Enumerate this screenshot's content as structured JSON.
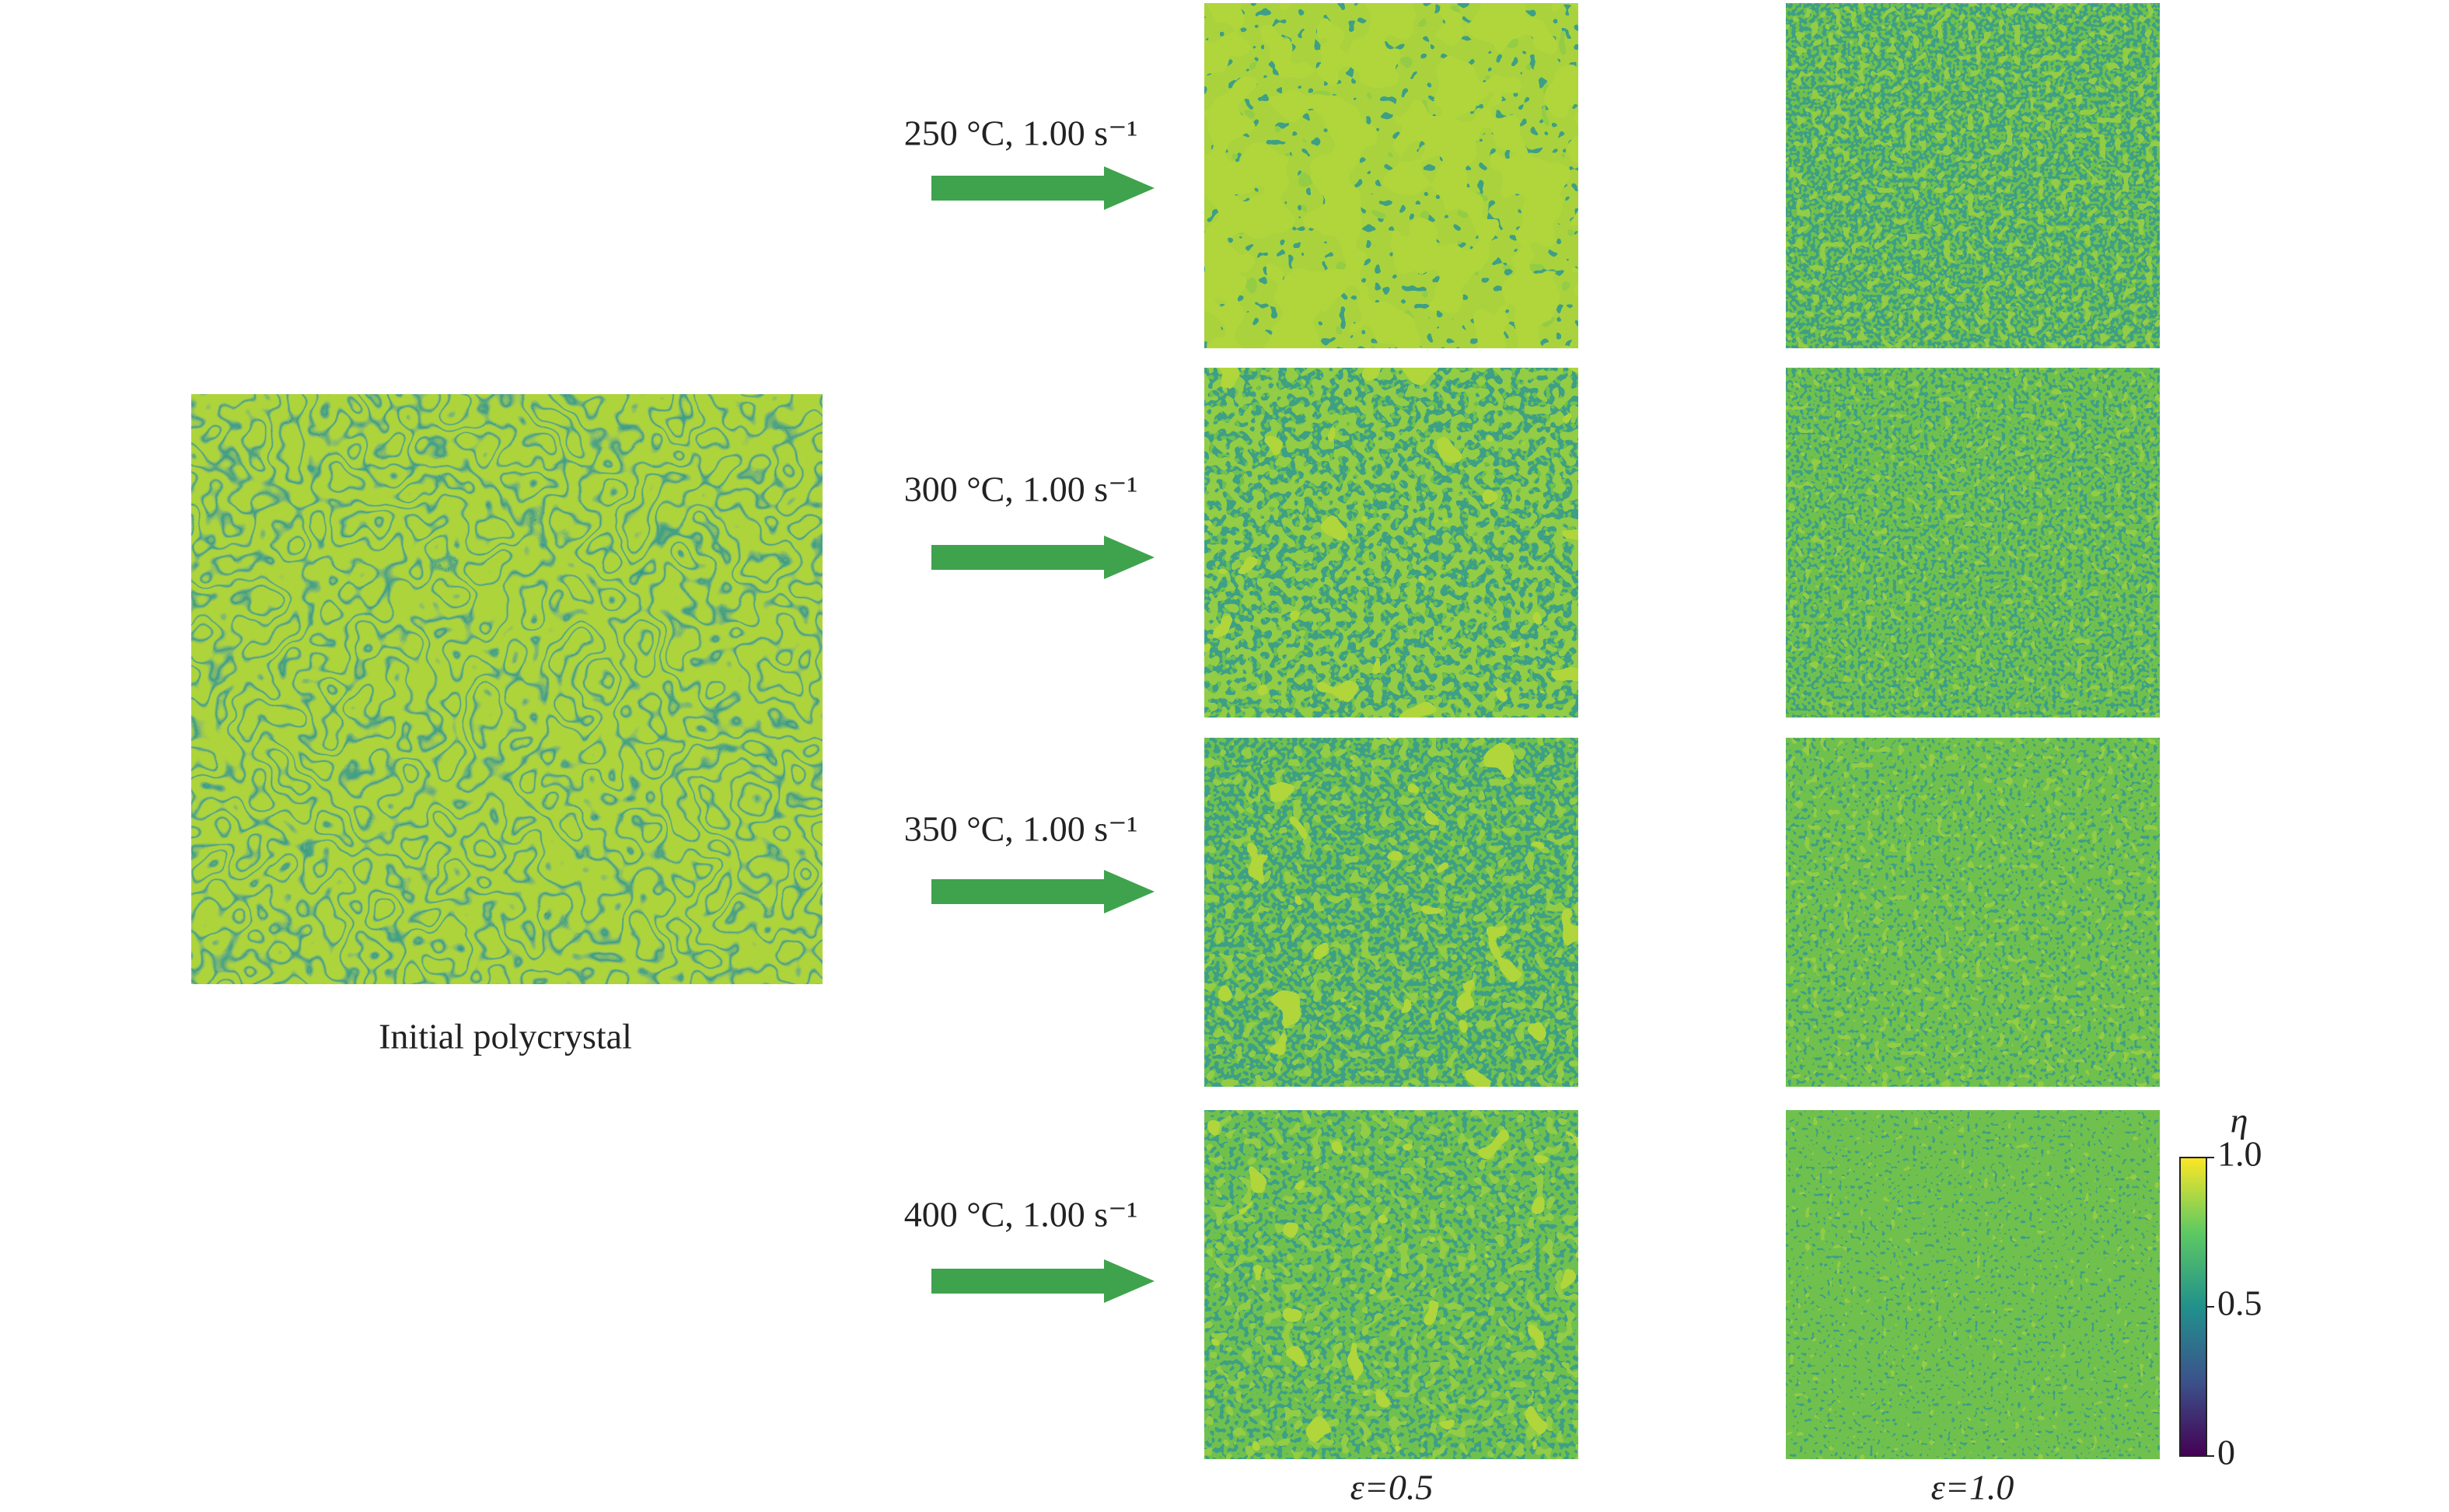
{
  "figure": {
    "initial_label": "Initial polycrystal",
    "conditions": [
      "250 °C, 1.00 s⁻¹",
      "300 °C, 1.00 s⁻¹",
      "350 °C, 1.00 s⁻¹",
      "400 °C, 1.00 s⁻¹"
    ],
    "strain_labels": [
      "ε=0.5",
      "ε=1.0"
    ],
    "colorbar": {
      "label": "η",
      "lim": [
        0,
        1
      ],
      "ticks": [
        0,
        0.5,
        {
          "value": 1,
          "label": "1.0"
        }
      ]
    }
  }
}
